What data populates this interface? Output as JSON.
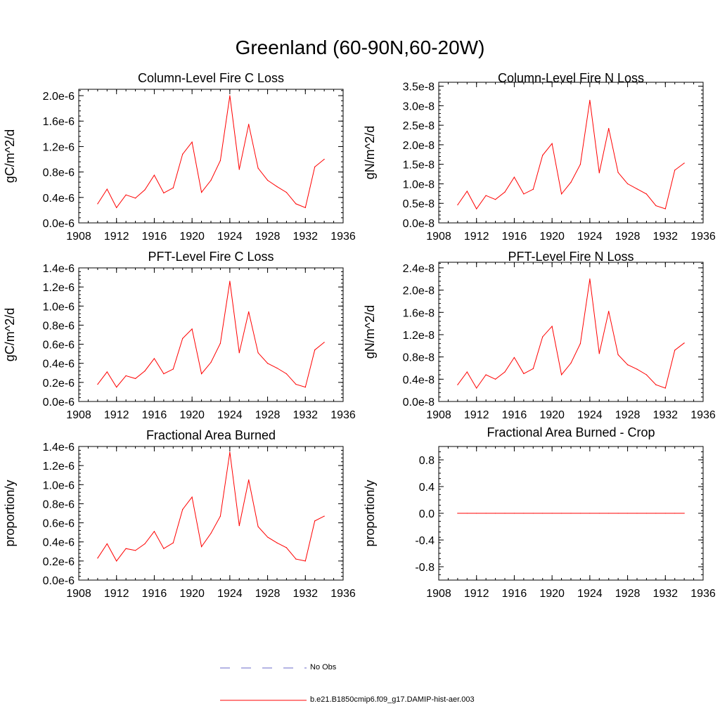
{
  "title": "Greenland (60-90N,60-20W)",
  "legend": {
    "items": [
      {
        "label": "No Obs",
        "color": "#6b6bc8",
        "style": "dashed"
      },
      {
        "label": "b.e21.B1850cmip6.f09_g17.DAMIP-hist-aer.003",
        "color": "#ff0000",
        "style": "solid"
      }
    ]
  },
  "chart_data": [
    {
      "type": "line",
      "title": "Column-Level Fire C Loss",
      "ylabel": "gC/m^2/d",
      "xlim": [
        1908,
        1936
      ],
      "ylim": [
        0,
        2.1e-06
      ],
      "xticks": [
        1908,
        1912,
        1916,
        1920,
        1924,
        1928,
        1932,
        1936
      ],
      "xtick_labels": [
        "1908",
        "1912",
        "1916",
        "1920",
        "1924",
        "1928",
        "1932",
        "1936"
      ],
      "yticks": [
        0,
        4e-07,
        8e-07,
        1.2e-06,
        1.6e-06,
        2e-06
      ],
      "ytick_labels": [
        "0.0e-6",
        "0.4e-6",
        "0.8e-6",
        "1.2e-6",
        "1.6e-6",
        "2.0e-6"
      ],
      "series": [
        {
          "color": "#ff0000",
          "x": [
            1910,
            1911,
            1912,
            1913,
            1914,
            1915,
            1916,
            1917,
            1918,
            1919,
            1920,
            1921,
            1922,
            1923,
            1924,
            1925,
            1926,
            1927,
            1928,
            1929,
            1930,
            1931,
            1932,
            1933,
            1934
          ],
          "y": [
            3e-07,
            5.3e-07,
            2.4e-07,
            4.4e-07,
            3.9e-07,
            5.2e-07,
            7.5e-07,
            4.7e-07,
            5.5e-07,
            1.08e-06,
            1.27e-06,
            4.8e-07,
            6.7e-07,
            9.8e-07,
            2e-06,
            8.4e-07,
            1.55e-06,
            8.6e-07,
            6.7e-07,
            5.7e-07,
            4.8e-07,
            3e-07,
            2.4e-07,
            8.8e-07,
            1e-06
          ]
        }
      ]
    },
    {
      "type": "line",
      "title": "Column-Level Fire N Loss",
      "ylabel": "gN/m^2/d",
      "xlim": [
        1908,
        1936
      ],
      "ylim": [
        0,
        3.6e-08
      ],
      "xticks": [
        1908,
        1912,
        1916,
        1920,
        1924,
        1928,
        1932,
        1936
      ],
      "xtick_labels": [
        "1908",
        "1912",
        "1916",
        "1920",
        "1924",
        "1928",
        "1932",
        "1936"
      ],
      "yticks": [
        0,
        5e-09,
        1e-08,
        1.5e-08,
        2e-08,
        2.5e-08,
        3e-08,
        3.5e-08
      ],
      "ytick_labels": [
        "0.0e-8",
        "0.5e-8",
        "1.0e-8",
        "1.5e-8",
        "2.0e-8",
        "2.5e-8",
        "3.0e-8",
        "3.5e-8"
      ],
      "series": [
        {
          "color": "#ff0000",
          "x": [
            1910,
            1911,
            1912,
            1913,
            1914,
            1915,
            1916,
            1917,
            1918,
            1919,
            1920,
            1921,
            1922,
            1923,
            1924,
            1925,
            1926,
            1927,
            1928,
            1929,
            1930,
            1931,
            1932,
            1933,
            1934
          ],
          "y": [
            4.6e-09,
            8.1e-09,
            3.6e-09,
            7e-09,
            6e-09,
            7.9e-09,
            1.17e-08,
            7.4e-09,
            8.6e-09,
            1.73e-08,
            2.03e-08,
            7.4e-09,
            1.04e-08,
            1.5e-08,
            3.14e-08,
            1.28e-08,
            2.42e-08,
            1.29e-08,
            1e-08,
            8.7e-09,
            7.4e-09,
            4.4e-09,
            3.6e-09,
            1.35e-08,
            1.53e-08
          ]
        }
      ]
    },
    {
      "type": "line",
      "title": "PFT-Level Fire C Loss",
      "ylabel": "gC/m^2/d",
      "xlim": [
        1908,
        1936
      ],
      "ylim": [
        0,
        1.4e-06
      ],
      "xticks": [
        1908,
        1912,
        1916,
        1920,
        1924,
        1928,
        1932,
        1936
      ],
      "xtick_labels": [
        "1908",
        "1912",
        "1916",
        "1920",
        "1924",
        "1928",
        "1932",
        "1936"
      ],
      "yticks": [
        0,
        2e-07,
        4e-07,
        6e-07,
        8e-07,
        1e-06,
        1.2e-06,
        1.4e-06
      ],
      "ytick_labels": [
        "0.0e-6",
        "0.2e-6",
        "0.4e-6",
        "0.6e-6",
        "0.8e-6",
        "1.0e-6",
        "1.2e-6",
        "1.4e-6"
      ],
      "series": [
        {
          "color": "#ff0000",
          "x": [
            1910,
            1911,
            1912,
            1913,
            1914,
            1915,
            1916,
            1917,
            1918,
            1919,
            1920,
            1921,
            1922,
            1923,
            1924,
            1925,
            1926,
            1927,
            1928,
            1929,
            1930,
            1931,
            1932,
            1933,
            1934
          ],
          "y": [
            1.8e-07,
            3.1e-07,
            1.5e-07,
            2.7e-07,
            2.4e-07,
            3.2e-07,
            4.5e-07,
            2.9e-07,
            3.4e-07,
            6.6e-07,
            7.6e-07,
            2.9e-07,
            4.1e-07,
            6.1e-07,
            1.26e-06,
            5.1e-07,
            9.4e-07,
            5.1e-07,
            4e-07,
            3.5e-07,
            2.9e-07,
            1.8e-07,
            1.5e-07,
            5.4e-07,
            6.2e-07
          ]
        }
      ]
    },
    {
      "type": "line",
      "title": "PFT-Level Fire N Loss",
      "ylabel": "gN/m^2/d",
      "xlim": [
        1908,
        1936
      ],
      "ylim": [
        0,
        2.5e-08
      ],
      "xticks": [
        1908,
        1912,
        1916,
        1920,
        1924,
        1928,
        1932,
        1936
      ],
      "xtick_labels": [
        "1908",
        "1912",
        "1916",
        "1920",
        "1924",
        "1928",
        "1932",
        "1936"
      ],
      "yticks": [
        0,
        4e-09,
        8e-09,
        1.2e-08,
        1.6e-08,
        2e-08,
        2.4e-08
      ],
      "ytick_labels": [
        "0.0e-8",
        "0.4e-8",
        "0.8e-8",
        "1.2e-8",
        "1.6e-8",
        "2.0e-8",
        "2.4e-8"
      ],
      "series": [
        {
          "color": "#ff0000",
          "x": [
            1910,
            1911,
            1912,
            1913,
            1914,
            1915,
            1916,
            1917,
            1918,
            1919,
            1920,
            1921,
            1922,
            1923,
            1924,
            1925,
            1926,
            1927,
            1928,
            1929,
            1930,
            1931,
            1932,
            1933,
            1934
          ],
          "y": [
            3e-09,
            5.3e-09,
            2.4e-09,
            4.8e-09,
            4e-09,
            5.3e-09,
            7.9e-09,
            5e-09,
            5.9e-09,
            1.16e-08,
            1.35e-08,
            4.8e-09,
            6.9e-09,
            1.04e-08,
            2.2e-08,
            8.6e-09,
            1.62e-08,
            8.4e-09,
            6.6e-09,
            5.8e-09,
            4.8e-09,
            3e-09,
            2.4e-09,
            9.2e-09,
            1.05e-08
          ]
        }
      ]
    },
    {
      "type": "line",
      "title": "Fractional Area Burned",
      "ylabel": "proportion/y",
      "xlim": [
        1908,
        1936
      ],
      "ylim": [
        0,
        1.4e-06
      ],
      "xticks": [
        1908,
        1912,
        1916,
        1920,
        1924,
        1928,
        1932,
        1936
      ],
      "xtick_labels": [
        "1908",
        "1912",
        "1916",
        "1920",
        "1924",
        "1928",
        "1932",
        "1936"
      ],
      "yticks": [
        0,
        2e-07,
        4e-07,
        6e-07,
        8e-07,
        1e-06,
        1.2e-06,
        1.4e-06
      ],
      "ytick_labels": [
        "0.0e-6",
        "0.2e-6",
        "0.4e-6",
        "0.6e-6",
        "0.8e-6",
        "1.0e-6",
        "1.2e-6",
        "1.4e-6"
      ],
      "series": [
        {
          "color": "#ff0000",
          "x": [
            1910,
            1911,
            1912,
            1913,
            1914,
            1915,
            1916,
            1917,
            1918,
            1919,
            1920,
            1921,
            1922,
            1923,
            1924,
            1925,
            1926,
            1927,
            1928,
            1929,
            1930,
            1931,
            1932,
            1933,
            1934
          ],
          "y": [
            2.3e-07,
            3.8e-07,
            2e-07,
            3.3e-07,
            3.1e-07,
            3.8e-07,
            5.1e-07,
            3.3e-07,
            3.9e-07,
            7.4e-07,
            8.7e-07,
            3.5e-07,
            4.9e-07,
            6.7e-07,
            1.34e-06,
            5.7e-07,
            1.05e-06,
            5.6e-07,
            4.5e-07,
            3.9e-07,
            3.4e-07,
            2.2e-07,
            2e-07,
            6.2e-07,
            6.7e-07
          ]
        }
      ]
    },
    {
      "type": "line",
      "title": "Fractional Area Burned - Crop",
      "ylabel": "proportion/y",
      "xlim": [
        1908,
        1936
      ],
      "ylim": [
        -1.0,
        1.0
      ],
      "xticks": [
        1908,
        1912,
        1916,
        1920,
        1924,
        1928,
        1932,
        1936
      ],
      "xtick_labels": [
        "1908",
        "1912",
        "1916",
        "1920",
        "1924",
        "1928",
        "1932",
        "1936"
      ],
      "yticks": [
        -0.8,
        -0.4,
        0.0,
        0.4,
        0.8
      ],
      "ytick_labels": [
        "-0.8",
        "-0.4",
        "0.0",
        "0.4",
        "0.8"
      ],
      "series": [
        {
          "color": "#ff0000",
          "x": [
            1910,
            1911,
            1912,
            1913,
            1914,
            1915,
            1916,
            1917,
            1918,
            1919,
            1920,
            1921,
            1922,
            1923,
            1924,
            1925,
            1926,
            1927,
            1928,
            1929,
            1930,
            1931,
            1932,
            1933,
            1934
          ],
          "y": [
            0,
            0,
            0,
            0,
            0,
            0,
            0,
            0,
            0,
            0,
            0,
            0,
            0,
            0,
            0,
            0,
            0,
            0,
            0,
            0,
            0,
            0,
            0,
            0,
            0
          ]
        }
      ]
    }
  ]
}
